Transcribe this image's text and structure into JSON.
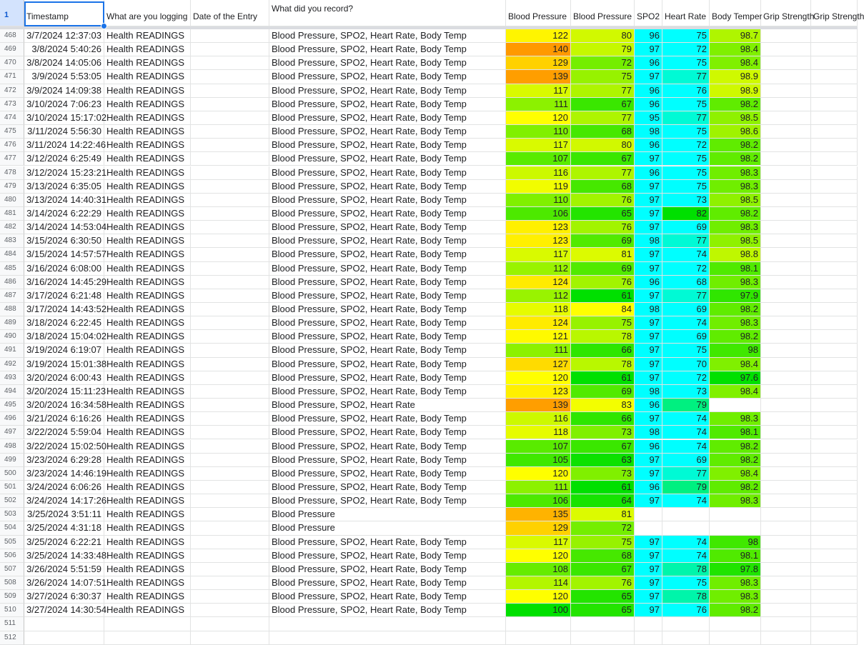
{
  "header": {
    "row_number": "1",
    "timestamp": "Timestamp",
    "logging": "What are you logging",
    "date_entry": "Date of the Entry",
    "recorded": "What did you record?",
    "bp_sys": "Blood Pressure",
    "bp_dia": "Blood Pressure",
    "spo2": "SPO2",
    "heart_rate": "Heart Rate",
    "body_temp": "Body Temper",
    "grip1": "Grip Strength",
    "grip2": "Grip Strength"
  },
  "rows": [
    {
      "n": "468",
      "ts": "3/7/2024 12:37:03",
      "log": "Health READINGS",
      "rec": "Blood Pressure, SPO2, Heart Rate, Body Temp",
      "sys": "122",
      "dia": "80",
      "spo2": "96",
      "hr": "75",
      "temp": "98.7"
    },
    {
      "n": "469",
      "ts": "3/8/2024 5:40:26",
      "log": "Health READINGS",
      "rec": "Blood Pressure, SPO2, Heart Rate, Body Temp",
      "sys": "140",
      "dia": "79",
      "spo2": "97",
      "hr": "72",
      "temp": "98.4"
    },
    {
      "n": "470",
      "ts": "3/8/2024 14:05:06",
      "log": "Health READINGS",
      "rec": "Blood Pressure, SPO2, Heart Rate, Body Temp",
      "sys": "129",
      "dia": "72",
      "spo2": "96",
      "hr": "75",
      "temp": "98.4"
    },
    {
      "n": "471",
      "ts": "3/9/2024 5:53:05",
      "log": "Health READINGS",
      "rec": "Blood Pressure, SPO2, Heart Rate, Body Temp",
      "sys": "139",
      "dia": "75",
      "spo2": "97",
      "hr": "77",
      "temp": "98.9"
    },
    {
      "n": "472",
      "ts": "3/9/2024 14:09:38",
      "log": "Health READINGS",
      "rec": "Blood Pressure, SPO2, Heart Rate, Body Temp",
      "sys": "117",
      "dia": "77",
      "spo2": "96",
      "hr": "76",
      "temp": "98.9"
    },
    {
      "n": "473",
      "ts": "3/10/2024 7:06:23",
      "log": "Health READINGS",
      "rec": "Blood Pressure, SPO2, Heart Rate, Body Temp",
      "sys": "111",
      "dia": "67",
      "spo2": "96",
      "hr": "75",
      "temp": "98.2"
    },
    {
      "n": "474",
      "ts": "3/10/2024 15:17:02",
      "log": "Health READINGS",
      "rec": "Blood Pressure, SPO2, Heart Rate, Body Temp",
      "sys": "120",
      "dia": "77",
      "spo2": "95",
      "hr": "77",
      "temp": "98.5"
    },
    {
      "n": "475",
      "ts": "3/11/2024 5:56:30",
      "log": "Health READINGS",
      "rec": "Blood Pressure, SPO2, Heart Rate, Body Temp",
      "sys": "110",
      "dia": "68",
      "spo2": "98",
      "hr": "75",
      "temp": "98.6"
    },
    {
      "n": "476",
      "ts": "3/11/2024 14:22:46",
      "log": "Health READINGS",
      "rec": "Blood Pressure, SPO2, Heart Rate, Body Temp",
      "sys": "117",
      "dia": "80",
      "spo2": "96",
      "hr": "72",
      "temp": "98.2"
    },
    {
      "n": "477",
      "ts": "3/12/2024 6:25:49",
      "log": "Health READINGS",
      "rec": "Blood Pressure, SPO2, Heart Rate, Body Temp",
      "sys": "107",
      "dia": "67",
      "spo2": "97",
      "hr": "75",
      "temp": "98.2"
    },
    {
      "n": "478",
      "ts": "3/12/2024 15:23:21",
      "log": "Health READINGS",
      "rec": "Blood Pressure, SPO2, Heart Rate, Body Temp",
      "sys": "116",
      "dia": "77",
      "spo2": "96",
      "hr": "75",
      "temp": "98.3"
    },
    {
      "n": "479",
      "ts": "3/13/2024 6:35:05",
      "log": "Health READINGS",
      "rec": "Blood Pressure, SPO2, Heart Rate, Body Temp",
      "sys": "119",
      "dia": "68",
      "spo2": "97",
      "hr": "75",
      "temp": "98.3"
    },
    {
      "n": "480",
      "ts": "3/13/2024 14:40:31",
      "log": "Health READINGS",
      "rec": "Blood Pressure, SPO2, Heart Rate, Body Temp",
      "sys": "110",
      "dia": "76",
      "spo2": "97",
      "hr": "73",
      "temp": "98.5"
    },
    {
      "n": "481",
      "ts": "3/14/2024 6:22:29",
      "log": "Health READINGS",
      "rec": "Blood Pressure, SPO2, Heart Rate, Body Temp",
      "sys": "106",
      "dia": "65",
      "spo2": "97",
      "hr": "82",
      "temp": "98.2"
    },
    {
      "n": "482",
      "ts": "3/14/2024 14:53:04",
      "log": "Health READINGS",
      "rec": "Blood Pressure, SPO2, Heart Rate, Body Temp",
      "sys": "123",
      "dia": "76",
      "spo2": "97",
      "hr": "69",
      "temp": "98.3"
    },
    {
      "n": "483",
      "ts": "3/15/2024 6:30:50",
      "log": "Health READINGS",
      "rec": "Blood Pressure, SPO2, Heart Rate, Body Temp",
      "sys": "123",
      "dia": "69",
      "spo2": "98",
      "hr": "77",
      "temp": "98.5"
    },
    {
      "n": "484",
      "ts": "3/15/2024 14:57:57",
      "log": "Health READINGS",
      "rec": "Blood Pressure, SPO2, Heart Rate, Body Temp",
      "sys": "117",
      "dia": "81",
      "spo2": "97",
      "hr": "74",
      "temp": "98.8"
    },
    {
      "n": "485",
      "ts": "3/16/2024 6:08:00",
      "log": "Health READINGS",
      "rec": "Blood Pressure, SPO2, Heart Rate, Body Temp",
      "sys": "112",
      "dia": "69",
      "spo2": "97",
      "hr": "72",
      "temp": "98.1"
    },
    {
      "n": "486",
      "ts": "3/16/2024 14:45:29",
      "log": "Health READINGS",
      "rec": "Blood Pressure, SPO2, Heart Rate, Body Temp",
      "sys": "124",
      "dia": "76",
      "spo2": "96",
      "hr": "68",
      "temp": "98.3"
    },
    {
      "n": "487",
      "ts": "3/17/2024 6:21:48",
      "log": "Health READINGS",
      "rec": "Blood Pressure, SPO2, Heart Rate, Body Temp",
      "sys": "112",
      "dia": "61",
      "spo2": "97",
      "hr": "77",
      "temp": "97.9"
    },
    {
      "n": "488",
      "ts": "3/17/2024 14:43:52",
      "log": "Health READINGS",
      "rec": "Blood Pressure, SPO2, Heart Rate, Body Temp",
      "sys": "118",
      "dia": "84",
      "spo2": "98",
      "hr": "69",
      "temp": "98.2"
    },
    {
      "n": "489",
      "ts": "3/18/2024 6:22:45",
      "log": "Health READINGS",
      "rec": "Blood Pressure, SPO2, Heart Rate, Body Temp",
      "sys": "124",
      "dia": "75",
      "spo2": "97",
      "hr": "74",
      "temp": "98.3"
    },
    {
      "n": "490",
      "ts": "3/18/2024 15:04:02",
      "log": "Health READINGS",
      "rec": "Blood Pressure, SPO2, Heart Rate, Body Temp",
      "sys": "121",
      "dia": "78",
      "spo2": "97",
      "hr": "69",
      "temp": "98.2"
    },
    {
      "n": "491",
      "ts": "3/19/2024 6:19:07",
      "log": "Health READINGS",
      "rec": "Blood Pressure, SPO2, Heart Rate, Body Temp",
      "sys": "111",
      "dia": "66",
      "spo2": "97",
      "hr": "75",
      "temp": "98"
    },
    {
      "n": "492",
      "ts": "3/19/2024 15:01:38",
      "log": "Health READINGS",
      "rec": "Blood Pressure, SPO2, Heart Rate, Body Temp",
      "sys": "127",
      "dia": "78",
      "spo2": "97",
      "hr": "70",
      "temp": "98.4"
    },
    {
      "n": "493",
      "ts": "3/20/2024 6:00:43",
      "log": "Health READINGS",
      "rec": "Blood Pressure, SPO2, Heart Rate, Body Temp",
      "sys": "120",
      "dia": "61",
      "spo2": "97",
      "hr": "72",
      "temp": "97.6"
    },
    {
      "n": "494",
      "ts": "3/20/2024 15:11:23",
      "log": "Health READINGS",
      "rec": "Blood Pressure, SPO2, Heart Rate, Body Temp",
      "sys": "123",
      "dia": "69",
      "spo2": "98",
      "hr": "73",
      "temp": "98.4"
    },
    {
      "n": "495",
      "ts": "3/20/2024 16:34:58",
      "log": "Health READINGS",
      "rec": "Blood Pressure, SPO2, Heart Rate",
      "sys": "139",
      "dia": "83",
      "spo2": "96",
      "hr": "79",
      "temp": ""
    },
    {
      "n": "496",
      "ts": "3/21/2024 6:16:26",
      "log": "Health READINGS",
      "rec": "Blood Pressure, SPO2, Heart Rate, Body Temp",
      "sys": "116",
      "dia": "66",
      "spo2": "97",
      "hr": "74",
      "temp": "98.3"
    },
    {
      "n": "497",
      "ts": "3/22/2024 5:59:04",
      "log": "Health READINGS",
      "rec": "Blood Pressure, SPO2, Heart Rate, Body Temp",
      "sys": "118",
      "dia": "73",
      "spo2": "98",
      "hr": "74",
      "temp": "98.1"
    },
    {
      "n": "498",
      "ts": "3/22/2024 15:02:50",
      "log": "Health READINGS",
      "rec": "Blood Pressure, SPO2, Heart Rate, Body Temp",
      "sys": "107",
      "dia": "67",
      "spo2": "96",
      "hr": "74",
      "temp": "98.2"
    },
    {
      "n": "499",
      "ts": "3/23/2024 6:29:28",
      "log": "Health READINGS",
      "rec": "Blood Pressure, SPO2, Heart Rate, Body Temp",
      "sys": "105",
      "dia": "63",
      "spo2": "97",
      "hr": "69",
      "temp": "98.2"
    },
    {
      "n": "500",
      "ts": "3/23/2024 14:46:19",
      "log": "Health READINGS",
      "rec": "Blood Pressure, SPO2, Heart Rate, Body Temp",
      "sys": "120",
      "dia": "73",
      "spo2": "97",
      "hr": "77",
      "temp": "98.4"
    },
    {
      "n": "501",
      "ts": "3/24/2024 6:06:26",
      "log": "Health READINGS",
      "rec": "Blood Pressure, SPO2, Heart Rate, Body Temp",
      "sys": "111",
      "dia": "61",
      "spo2": "96",
      "hr": "79",
      "temp": "98.2"
    },
    {
      "n": "502",
      "ts": "3/24/2024 14:17:26",
      "log": "Health READINGS",
      "rec": "Blood Pressure, SPO2, Heart Rate, Body Temp",
      "sys": "106",
      "dia": "64",
      "spo2": "97",
      "hr": "74",
      "temp": "98.3"
    },
    {
      "n": "503",
      "ts": "3/25/2024 3:51:11",
      "log": "Health READINGS",
      "rec": "Blood Pressure",
      "sys": "135",
      "dia": "81",
      "spo2": "",
      "hr": "",
      "temp": ""
    },
    {
      "n": "504",
      "ts": "3/25/2024 4:31:18",
      "log": "Health READINGS",
      "rec": "Blood Pressure",
      "sys": "129",
      "dia": "72",
      "spo2": "",
      "hr": "",
      "temp": ""
    },
    {
      "n": "505",
      "ts": "3/25/2024 6:22:21",
      "log": "Health READINGS",
      "rec": "Blood Pressure, SPO2, Heart Rate, Body Temp",
      "sys": "117",
      "dia": "75",
      "spo2": "97",
      "hr": "74",
      "temp": "98"
    },
    {
      "n": "506",
      "ts": "3/25/2024 14:33:48",
      "log": "Health READINGS",
      "rec": "Blood Pressure, SPO2, Heart Rate, Body Temp",
      "sys": "120",
      "dia": "68",
      "spo2": "97",
      "hr": "74",
      "temp": "98.1"
    },
    {
      "n": "507",
      "ts": "3/26/2024 5:51:59",
      "log": "Health READINGS",
      "rec": "Blood Pressure, SPO2, Heart Rate, Body Temp",
      "sys": "108",
      "dia": "67",
      "spo2": "97",
      "hr": "78",
      "temp": "97.8"
    },
    {
      "n": "508",
      "ts": "3/26/2024 14:07:51",
      "log": "Health READINGS",
      "rec": "Blood Pressure, SPO2, Heart Rate, Body Temp",
      "sys": "114",
      "dia": "76",
      "spo2": "97",
      "hr": "75",
      "temp": "98.3"
    },
    {
      "n": "509",
      "ts": "3/27/2024 6:30:37",
      "log": "Health READINGS",
      "rec": "Blood Pressure, SPO2, Heart Rate, Body Temp",
      "sys": "120",
      "dia": "65",
      "spo2": "97",
      "hr": "78",
      "temp": "98.3"
    },
    {
      "n": "510",
      "ts": "3/27/2024 14:30:54",
      "log": "Health READINGS",
      "rec": "Blood Pressure, SPO2, Heart Rate, Body Temp",
      "sys": "100",
      "dia": "65",
      "spo2": "97",
      "hr": "76",
      "temp": "98.2"
    }
  ],
  "empty_rows": [
    "511",
    "512"
  ],
  "colors": {
    "selection": "#1a73e8",
    "rownum_bg": "#f8f9fa",
    "header_rownum_bg": "#d3e3fd",
    "spo2_fill": "#00ffff",
    "scale_low": "#00e000",
    "scale_mid": "#ffff00",
    "scale_high": "#ff9900"
  }
}
